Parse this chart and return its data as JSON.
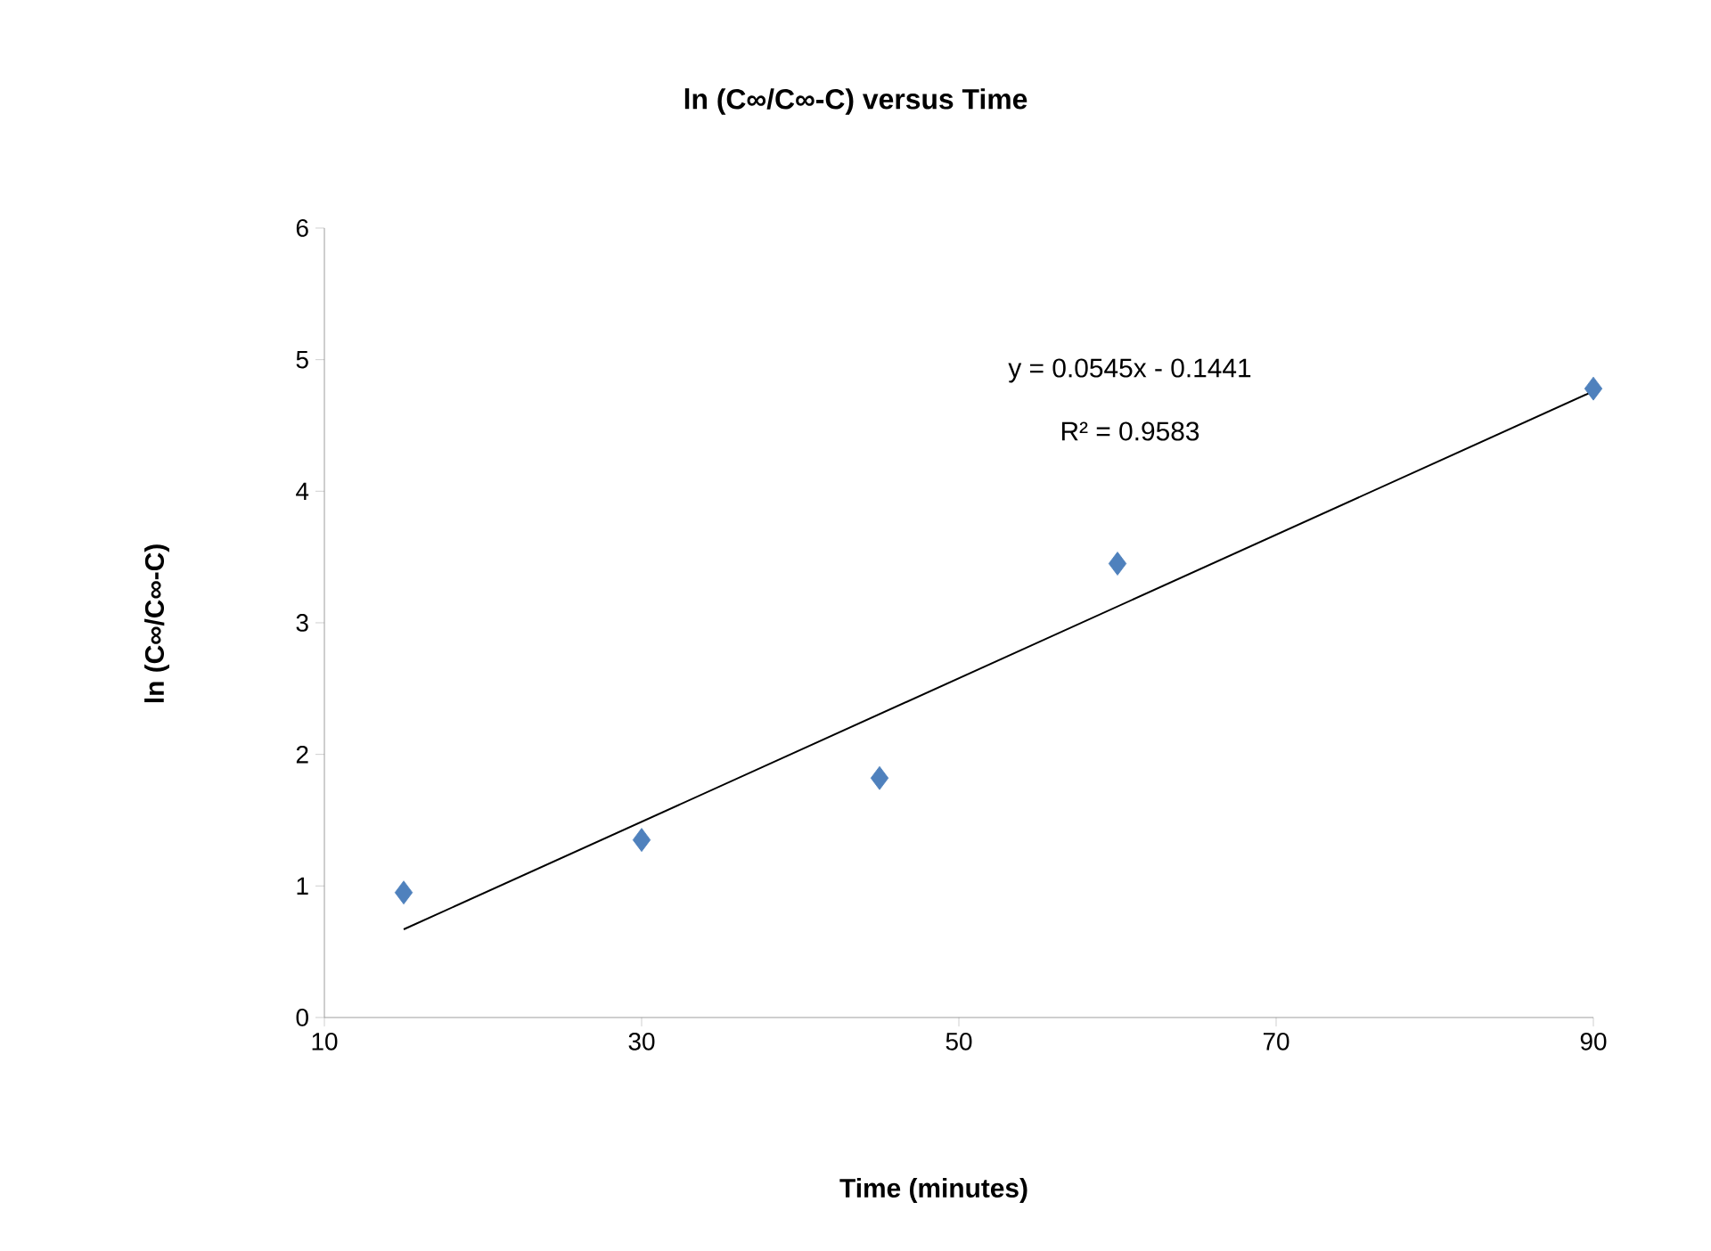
{
  "chart_data": {
    "type": "scatter",
    "title": "ln (C∞/C∞-C) versus Time",
    "xlabel": "Time (minutes)",
    "ylabel": "ln (C∞/C∞-C)",
    "x": [
      15,
      30,
      45,
      60,
      90
    ],
    "series": [
      {
        "color": "#4f81bd",
        "marker": "diamond",
        "values": [
          0.95,
          1.35,
          1.82,
          3.45,
          4.78
        ]
      },
      {
        "type": "line",
        "color": "#000000",
        "marker": "none",
        "line_style": "solid",
        "x": [
          15,
          90
        ],
        "values": [
          0.67,
          4.76
        ]
      }
    ],
    "xlim": [
      10,
      90
    ],
    "xticks": [
      10,
      30,
      50,
      70,
      90
    ],
    "ylim": [
      0,
      6
    ],
    "yticks": [
      0,
      1,
      2,
      3,
      4,
      5,
      6
    ],
    "annotations": [
      "y = 0.0545x - 0.1441",
      "R² = 0.9583"
    ]
  }
}
